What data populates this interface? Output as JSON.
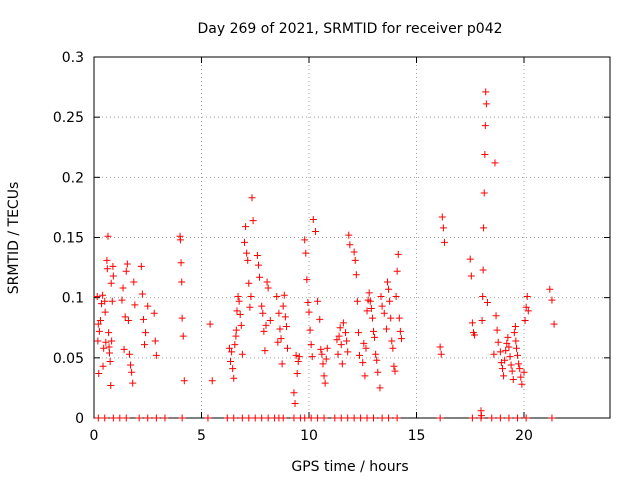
{
  "chart_data": {
    "type": "scatter",
    "title": "Day 269 of 2021, SRMTID for receiver p042",
    "xlabel": "GPS time / hours",
    "ylabel": "SRMTID / TECUs",
    "xlim": [
      0,
      24
    ],
    "ylim": [
      0,
      0.3
    ],
    "x_ticks": [
      0,
      5,
      10,
      15,
      20
    ],
    "x_tick_labels": [
      "0",
      "5",
      "10",
      "15",
      "20"
    ],
    "y_ticks": [
      0,
      0.05,
      0.1,
      0.15,
      0.2,
      0.25,
      0.3
    ],
    "y_tick_labels": [
      "0",
      "0.05",
      "0.1",
      "0.15",
      "0.2",
      "0.25",
      "0.3"
    ],
    "grid": true,
    "marker_color": "#ff0000",
    "series": [
      {
        "name": "SRMTID",
        "marker": "plus",
        "x": [
          0.15,
          0.18,
          0.2,
          0.22,
          0.25,
          0.3,
          0.35,
          0.4,
          0.42,
          0.45,
          0.5,
          0.52,
          0.55,
          0.6,
          0.62,
          0.65,
          0.68,
          0.7,
          0.72,
          0.75,
          0.78,
          0.8,
          0.82,
          0.85,
          0.88,
          0.9,
          1.3,
          1.35,
          1.4,
          1.45,
          1.5,
          1.55,
          1.6,
          1.65,
          1.7,
          1.75,
          1.8,
          1.85,
          1.9,
          2.2,
          2.25,
          2.3,
          2.35,
          2.4,
          2.5,
          2.8,
          2.85,
          2.9,
          4.0,
          4.02,
          4.05,
          4.08,
          4.1,
          4.15,
          4.2,
          5.4,
          5.5,
          6.3,
          6.35,
          6.4,
          6.45,
          6.5,
          6.55,
          6.6,
          6.62,
          6.65,
          6.7,
          6.75,
          6.8,
          6.85,
          6.9,
          7.0,
          7.05,
          7.1,
          7.15,
          7.2,
          7.25,
          7.3,
          7.35,
          7.4,
          7.6,
          7.65,
          7.7,
          7.8,
          7.85,
          7.9,
          7.95,
          8.0,
          8.05,
          8.1,
          8.2,
          8.5,
          8.55,
          8.6,
          8.65,
          8.7,
          8.75,
          8.8,
          8.85,
          8.9,
          8.95,
          9.0,
          9.3,
          9.35,
          9.4,
          9.45,
          9.5,
          9.55,
          9.8,
          9.85,
          9.9,
          9.95,
          10.0,
          10.05,
          10.1,
          10.15,
          10.2,
          10.3,
          10.4,
          10.5,
          10.55,
          10.6,
          10.65,
          10.7,
          10.75,
          10.8,
          10.85,
          11.3,
          11.35,
          11.4,
          11.45,
          11.5,
          11.55,
          11.6,
          11.7,
          11.75,
          11.8,
          11.85,
          11.9,
          12.1,
          12.15,
          12.2,
          12.25,
          12.3,
          12.35,
          12.5,
          12.55,
          12.6,
          12.65,
          12.7,
          12.75,
          12.8,
          12.85,
          12.9,
          12.95,
          13.0,
          13.05,
          13.1,
          13.15,
          13.2,
          13.3,
          13.35,
          13.4,
          13.5,
          13.6,
          13.65,
          13.7,
          13.75,
          13.8,
          13.85,
          13.9,
          13.95,
          14.0,
          14.05,
          14.1,
          14.15,
          14.2,
          14.25,
          14.3,
          16.1,
          16.15,
          16.2,
          16.25,
          16.3,
          17.5,
          17.55,
          17.6,
          17.65,
          17.7,
          18.0,
          18.02,
          18.05,
          18.08,
          18.1,
          18.12,
          18.15,
          18.18,
          18.2,
          18.22,
          18.25,
          18.3,
          18.6,
          18.65,
          18.7,
          18.75,
          18.8,
          18.9,
          18.95,
          19.0,
          19.05,
          19.1,
          19.15,
          19.2,
          19.25,
          19.3,
          19.35,
          19.4,
          19.45,
          19.5,
          19.55,
          19.6,
          19.62,
          19.65,
          19.7,
          19.75,
          19.8,
          19.85,
          19.9,
          20.0,
          20.05,
          20.1,
          20.15,
          20.2,
          21.2,
          21.3,
          21.4,
          0.2,
          0.5,
          0.9,
          1.2,
          1.5,
          2.1,
          2.5,
          2.9,
          3.3,
          4.1,
          5.3,
          6.2,
          6.5,
          6.9,
          7.2,
          7.5,
          7.8,
          8.1,
          8.4,
          8.6,
          8.8,
          9.3,
          9.6,
          9.8,
          10.1,
          10.4,
          10.7,
          11.2,
          11.5,
          11.8,
          12.1,
          12.4,
          12.7,
          13.0,
          13.4,
          13.7,
          14.1,
          16.1,
          17.6,
          18.0,
          18.5,
          18.9,
          19.3,
          19.7,
          20.1,
          21.3
        ],
        "y": [
          0.101,
          0.064,
          0.078,
          0.037,
          0.072,
          0.081,
          0.095,
          0.102,
          0.043,
          0.058,
          0.097,
          0.088,
          0.063,
          0.131,
          0.124,
          0.151,
          0.071,
          0.059,
          0.054,
          0.047,
          0.027,
          0.112,
          0.064,
          0.097,
          0.126,
          0.118,
          0.098,
          0.108,
          0.057,
          0.084,
          0.122,
          0.128,
          0.081,
          0.053,
          0.044,
          0.038,
          0.029,
          0.113,
          0.094,
          0.126,
          0.103,
          0.082,
          0.061,
          0.071,
          0.093,
          0.087,
          0.064,
          0.052,
          0.151,
          0.148,
          0.129,
          0.113,
          0.083,
          0.068,
          0.031,
          0.078,
          0.031,
          0.058,
          0.047,
          0.055,
          0.041,
          0.033,
          0.061,
          0.068,
          0.073,
          0.089,
          0.101,
          0.097,
          0.086,
          0.077,
          0.053,
          0.146,
          0.159,
          0.137,
          0.131,
          0.112,
          0.092,
          0.101,
          0.183,
          0.164,
          0.135,
          0.127,
          0.117,
          0.093,
          0.087,
          0.072,
          0.056,
          0.077,
          0.113,
          0.108,
          0.081,
          0.101,
          0.063,
          0.087,
          0.074,
          0.066,
          0.045,
          0.093,
          0.102,
          0.084,
          0.076,
          0.058,
          0.021,
          0.012,
          0.052,
          0.037,
          0.047,
          0.051,
          0.148,
          0.137,
          0.115,
          0.096,
          0.088,
          0.073,
          0.061,
          0.051,
          0.165,
          0.155,
          0.097,
          0.082,
          0.057,
          0.053,
          0.045,
          0.035,
          0.029,
          0.049,
          0.058,
          0.065,
          0.053,
          0.068,
          0.075,
          0.061,
          0.045,
          0.079,
          0.071,
          0.064,
          0.055,
          0.152,
          0.144,
          0.138,
          0.131,
          0.119,
          0.097,
          0.071,
          0.052,
          0.046,
          0.062,
          0.035,
          0.058,
          0.089,
          0.098,
          0.104,
          0.097,
          0.091,
          0.083,
          0.072,
          0.067,
          0.053,
          0.048,
          0.038,
          0.025,
          0.101,
          0.093,
          0.087,
          0.074,
          0.113,
          0.107,
          0.097,
          0.083,
          0.064,
          0.058,
          0.043,
          0.039,
          0.101,
          0.122,
          0.136,
          0.083,
          0.072,
          0.066,
          0.059,
          0.053,
          0.167,
          0.158,
          0.146,
          0.132,
          0.118,
          0.079,
          0.071,
          0.069,
          0.006,
          0.002,
          0.081,
          0.101,
          0.123,
          0.158,
          0.187,
          0.219,
          0.243,
          0.271,
          0.261,
          0.096,
          0.053,
          0.212,
          0.085,
          0.073,
          0.063,
          0.055,
          0.046,
          0.041,
          0.035,
          0.048,
          0.056,
          0.062,
          0.067,
          0.059,
          0.051,
          0.044,
          0.039,
          0.032,
          0.071,
          0.076,
          0.064,
          0.058,
          0.052,
          0.045,
          0.041,
          0.034,
          0.028,
          0.038,
          0.081,
          0.092,
          0.101,
          0.089,
          0.107,
          0.098,
          0.078,
          0,
          0,
          0,
          0,
          0,
          0,
          0,
          0,
          0,
          0,
          0,
          0,
          0,
          0,
          0,
          0,
          0,
          0,
          0,
          0,
          0,
          0,
          0,
          0,
          0,
          0,
          0,
          0,
          0,
          0,
          0,
          0,
          0,
          0,
          0,
          0,
          0,
          0,
          0,
          0,
          0,
          0,
          0,
          0,
          0,
          0
        ]
      }
    ]
  }
}
